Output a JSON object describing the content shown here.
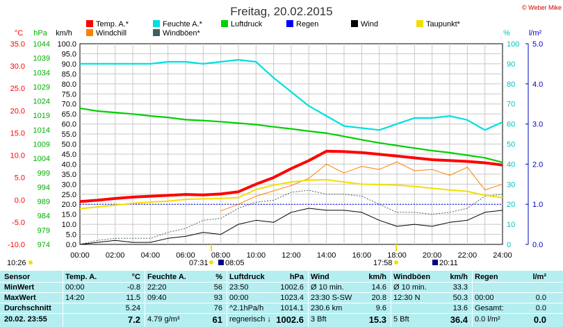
{
  "header": {
    "title": "Freitag, 20.02.2015",
    "credit": "© Weber Mike"
  },
  "legend": [
    {
      "label": "Temp. A.*",
      "color": "#ff0000"
    },
    {
      "label": "Feuchte A.*",
      "color": "#00e0e0"
    },
    {
      "label": "Luftdruck",
      "color": "#00d000"
    },
    {
      "label": "Regen",
      "color": "#0000ff"
    },
    {
      "label": "Wind",
      "color": "#000000"
    },
    {
      "label": "Taupunkt*",
      "color": "#f0e000"
    },
    {
      "label": "Windchill",
      "color": "#ff8000"
    },
    {
      "label": "Windböen*",
      "color": "#406060"
    }
  ],
  "axes": {
    "temp_unit": "°C",
    "press_unit": "hPa",
    "wind_unit": "km/h",
    "hum_unit": "%",
    "rain_unit": "l/m²",
    "temp_ticks": [
      "35.0",
      "30.0",
      "25.0",
      "20.0",
      "15.0",
      "10.0",
      "5.0",
      "0.0",
      "-5.0",
      "-10.0"
    ],
    "press_ticks": [
      "1044",
      "1039",
      "1034",
      "1029",
      "1024",
      "1019",
      "1014",
      "1009",
      "1004",
      "999",
      "994",
      "989",
      "984",
      "979",
      "974"
    ],
    "wind_ticks": [
      "100.0",
      "95.0",
      "90.0",
      "85.0",
      "80.0",
      "75.0",
      "70.0",
      "65.0",
      "60.0",
      "55.0",
      "50.0",
      "45.0",
      "40.0",
      "35.0",
      "30.0",
      "25.0",
      "20.0",
      "15.0",
      "10.0",
      "5.0",
      "0.0"
    ],
    "hum_ticks": [
      "100",
      "90",
      "80",
      "70",
      "60",
      "50",
      "40",
      "30",
      "20",
      "10",
      "0"
    ],
    "rain_ticks": [
      "5.0",
      "4.0",
      "3.0",
      "2.0",
      "1.0",
      "0.0"
    ],
    "time_ticks": [
      "00:00",
      "02:00",
      "04:00",
      "06:00",
      "08:00",
      "10:00",
      "12:00",
      "14:00",
      "16:00",
      "18:00",
      "20:00",
      "22:00",
      "24:00"
    ]
  },
  "sun_moon": {
    "moonrise": "10:26",
    "sunrise": "07:31",
    "moonset": "08:05",
    "sunset": "17:58",
    "moon2": "20:11"
  },
  "chart_data": {
    "type": "line",
    "x": [
      0,
      1,
      2,
      3,
      4,
      5,
      6,
      7,
      8,
      9,
      10,
      11,
      12,
      13,
      14,
      15,
      16,
      17,
      18,
      19,
      20,
      21,
      22,
      23,
      24
    ],
    "series": [
      {
        "name": "Temp. A.*",
        "axis": "temp",
        "color": "#ff0000",
        "values": [
          -0.4,
          -0.1,
          0.3,
          0.6,
          0.8,
          1.0,
          1.2,
          1.1,
          1.3,
          1.8,
          3.5,
          5.0,
          7.0,
          8.8,
          10.9,
          10.8,
          10.6,
          10.2,
          9.8,
          9.4,
          9.0,
          8.8,
          8.6,
          8.3,
          7.8
        ]
      },
      {
        "name": "Feuchte A.*",
        "axis": "hum",
        "color": "#00e0e0",
        "values": [
          90,
          90,
          90,
          90,
          90,
          91,
          91,
          90,
          91,
          92,
          91,
          83,
          76,
          69,
          64,
          59,
          58,
          57,
          60,
          63,
          63,
          64,
          62,
          57,
          61
        ]
      },
      {
        "name": "Luftdruck",
        "axis": "press",
        "color": "#00d000",
        "values": [
          1021.5,
          1020.5,
          1020.0,
          1019.5,
          1018.8,
          1018.3,
          1017.5,
          1017.2,
          1016.8,
          1016.3,
          1015.8,
          1015.0,
          1014.3,
          1013.5,
          1012.8,
          1011.7,
          1010.5,
          1009.4,
          1008.5,
          1007.6,
          1006.7,
          1006.0,
          1005.1,
          1004.2,
          1002.6
        ]
      },
      {
        "name": "Taupunkt*",
        "axis": "temp",
        "color": "#f0e000",
        "values": [
          -2.0,
          -1.6,
          -1.2,
          -0.8,
          -0.5,
          -0.3,
          0.1,
          0.2,
          0.3,
          0.5,
          2.3,
          3.3,
          4.0,
          4.4,
          4.5,
          4.0,
          3.5,
          3.4,
          3.3,
          3.0,
          2.6,
          2.2,
          1.9,
          1.0,
          0.5
        ]
      },
      {
        "name": "Windchill",
        "axis": "temp",
        "color": "#ff8000",
        "values": [
          null,
          null,
          null,
          null,
          null,
          null,
          null,
          null,
          -2.5,
          -1.0,
          0.8,
          2.0,
          3.2,
          4.8,
          8.0,
          6.0,
          7.5,
          6.8,
          8.5,
          6.5,
          6.8,
          5.5,
          7.3,
          2.2,
          3.5
        ]
      },
      {
        "name": "Wind",
        "axis": "wind",
        "color": "#000000",
        "values": [
          0,
          1,
          2,
          1,
          1,
          3,
          4,
          6,
          5,
          10,
          12,
          11,
          16,
          18,
          17,
          17,
          16,
          12,
          9,
          10,
          9,
          11,
          12,
          16,
          17
        ]
      },
      {
        "name": "Windböen*",
        "axis": "wind",
        "color": "#406060",
        "values": [
          0,
          2,
          3,
          3,
          3,
          6,
          8,
          12,
          13,
          18,
          21,
          22,
          26,
          27,
          25,
          25,
          24,
          20,
          16,
          16,
          15,
          16,
          18,
          24,
          25
        ]
      }
    ],
    "rain_reference_line": 1.0
  },
  "table": {
    "columns": [
      {
        "header": "Sensor",
        "rows": [
          "MinWert",
          "MaxWert",
          "Durchschnitt",
          "20.02.  23:55"
        ]
      },
      {
        "header": "Temp. A.",
        "unit": "°C",
        "rows": [
          [
            "00:00",
            "-0.8"
          ],
          [
            "14:20",
            "11.5"
          ],
          [
            "",
            "5.24"
          ],
          [
            "",
            "7.2"
          ]
        ]
      },
      {
        "header": "Feuchte A.",
        "unit": "%",
        "rows": [
          [
            "22:20",
            "56"
          ],
          [
            "09:40",
            "93"
          ],
          [
            "",
            "76"
          ],
          [
            "4.79 g/m³",
            "61"
          ]
        ]
      },
      {
        "header": "Luftdruck",
        "unit": "hPa",
        "rows": [
          [
            "23:50",
            "1002.6"
          ],
          [
            "00:00",
            "1023.4"
          ],
          [
            "^2.1hPa/h",
            "1014.1"
          ],
          [
            "regnerisch ↓",
            "1002.6"
          ]
        ]
      },
      {
        "header": "Wind",
        "unit": "km/h",
        "rows": [
          [
            "Ø 10 min.",
            "14.6"
          ],
          [
            "23:30   S-SW",
            "20.8"
          ],
          [
            "230.6 km",
            "9.6"
          ],
          [
            "3 Bft",
            "15.3"
          ]
        ]
      },
      {
        "header": "Windböen",
        "unit": "km/h",
        "rows": [
          [
            "Ø 10 min.",
            "33.3"
          ],
          [
            "12:30     N",
            "50.3"
          ],
          [
            "",
            "13.6"
          ],
          [
            "5 Bft",
            "36.4"
          ]
        ]
      },
      {
        "header": "Regen",
        "unit": "l/m²",
        "rows": [
          [
            "",
            ""
          ],
          [
            "00:00",
            "0.0"
          ],
          [
            "Gesamt:",
            "0.0"
          ],
          [
            "0.0 l/m²",
            "0.0"
          ]
        ]
      }
    ]
  }
}
